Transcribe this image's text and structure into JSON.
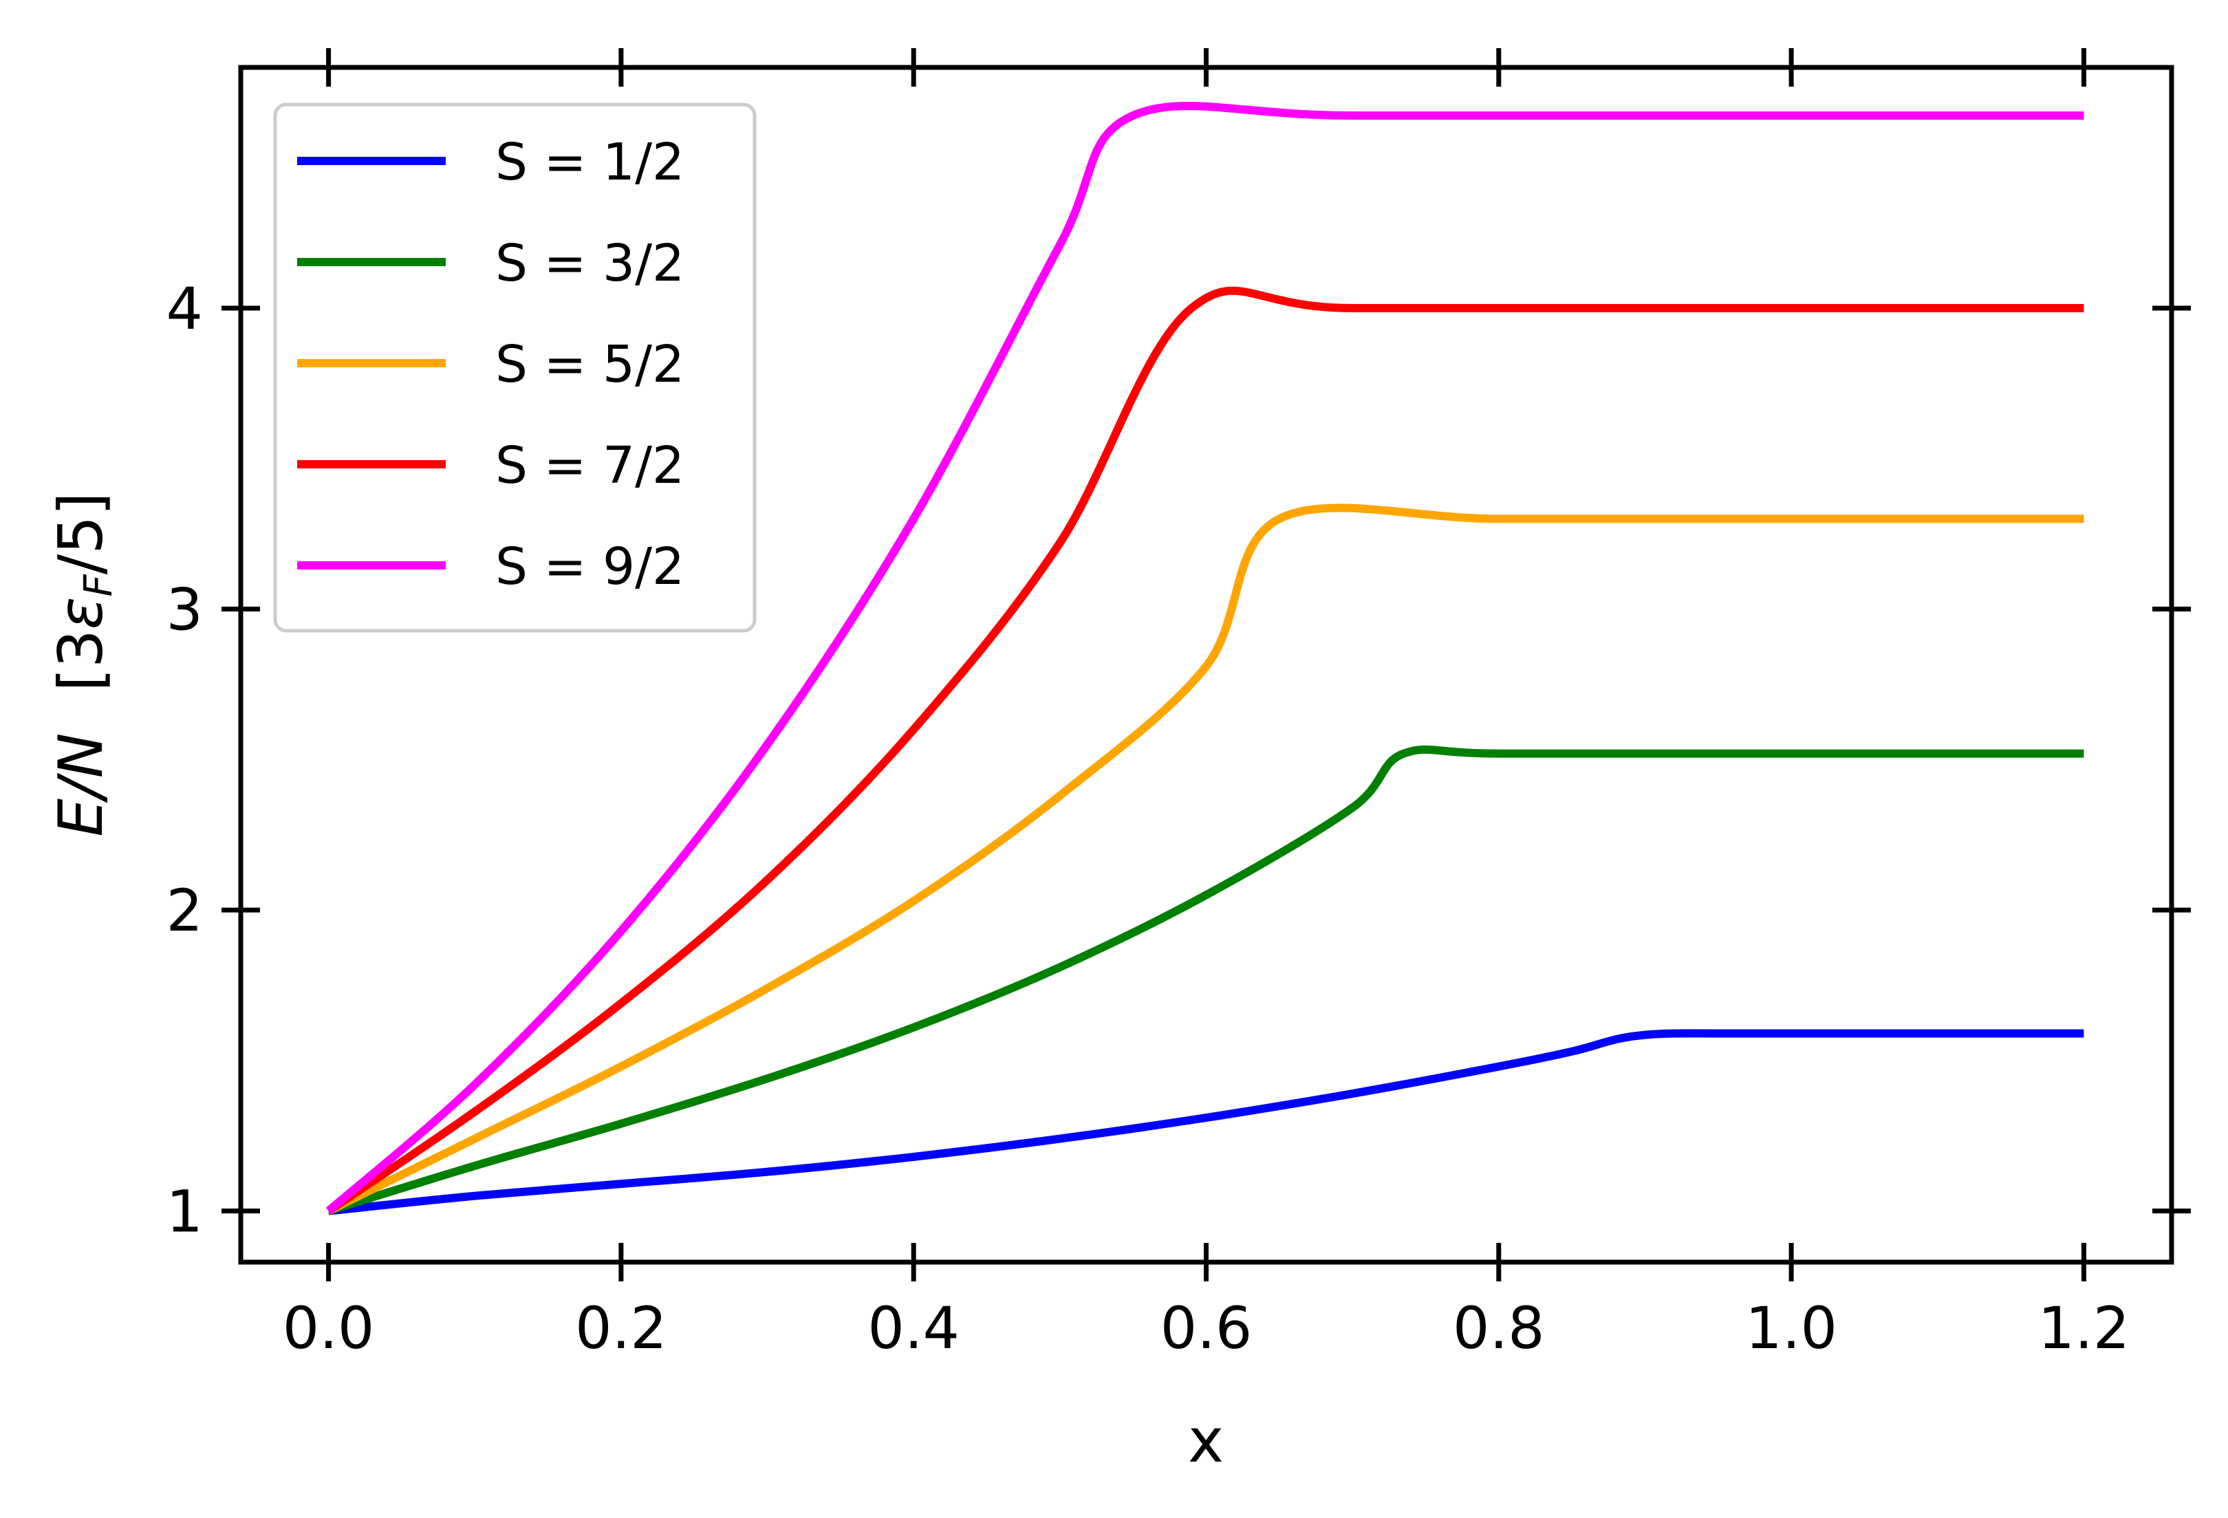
{
  "chart_data": {
    "type": "line",
    "xlabel": "x",
    "ylabel": {
      "prefix": "E/N",
      "unit_open": "[3",
      "unit_symbol": "ε",
      "unit_sub": "F",
      "unit_close": "/5]"
    },
    "xlim": [
      -0.06,
      1.26
    ],
    "ylim": [
      0.83,
      4.8
    ],
    "xticks": [
      0.0,
      0.2,
      0.4,
      0.6,
      0.8,
      1.0,
      1.2
    ],
    "xtick_labels": [
      "0.0",
      "0.2",
      "0.4",
      "0.6",
      "0.8",
      "1.0",
      "1.2"
    ],
    "yticks": [
      1,
      2,
      3,
      4
    ],
    "ytick_labels": [
      "1",
      "2",
      "3",
      "4"
    ],
    "legend_position": "top-left",
    "grid": false,
    "series": [
      {
        "name": "S = 1/2",
        "spin": "1/2",
        "color": "#0000ff",
        "x": [
          0.0,
          0.1,
          0.2,
          0.3,
          0.4,
          0.5,
          0.6,
          0.7,
          0.8,
          0.85,
          0.88,
          0.9,
          0.92,
          0.95,
          1.0,
          1.1,
          1.2
        ],
        "y": [
          1.0,
          1.05,
          1.09,
          1.13,
          1.18,
          1.24,
          1.31,
          1.39,
          1.48,
          1.53,
          1.57,
          1.585,
          1.59,
          1.59,
          1.59,
          1.59,
          1.59
        ]
      },
      {
        "name": "S = 3/2",
        "spin": "3/2",
        "color": "#008000",
        "x": [
          0.0,
          0.1,
          0.2,
          0.3,
          0.4,
          0.5,
          0.6,
          0.7,
          0.735,
          0.8,
          1.0,
          1.2
        ],
        "y": [
          1.0,
          1.15,
          1.29,
          1.44,
          1.61,
          1.81,
          2.05,
          2.34,
          2.52,
          2.52,
          2.52,
          2.52
        ]
      },
      {
        "name": "S = 5/2",
        "spin": "5/2",
        "color": "#ffa500",
        "x": [
          0.0,
          0.1,
          0.2,
          0.3,
          0.4,
          0.5,
          0.6,
          0.65,
          0.8,
          1.0,
          1.2
        ],
        "y": [
          1.0,
          1.24,
          1.48,
          1.74,
          2.03,
          2.38,
          2.81,
          3.3,
          3.3,
          3.3,
          3.3
        ]
      },
      {
        "name": "S = 7/2",
        "spin": "7/2",
        "color": "#ff0000",
        "x": [
          0.0,
          0.1,
          0.2,
          0.3,
          0.4,
          0.5,
          0.59,
          0.7,
          1.0,
          1.2
        ],
        "y": [
          1.0,
          1.33,
          1.69,
          2.1,
          2.6,
          3.22,
          4.0,
          4.0,
          4.0,
          4.0
        ]
      },
      {
        "name": "S = 9/2",
        "spin": "9/2",
        "color": "#ff00ff",
        "x": [
          0.0,
          0.1,
          0.2,
          0.3,
          0.4,
          0.5,
          0.55,
          0.7,
          1.0,
          1.2
        ],
        "y": [
          1.0,
          1.42,
          1.93,
          2.55,
          3.3,
          4.21,
          4.64,
          4.64,
          4.64,
          4.64
        ]
      }
    ]
  }
}
